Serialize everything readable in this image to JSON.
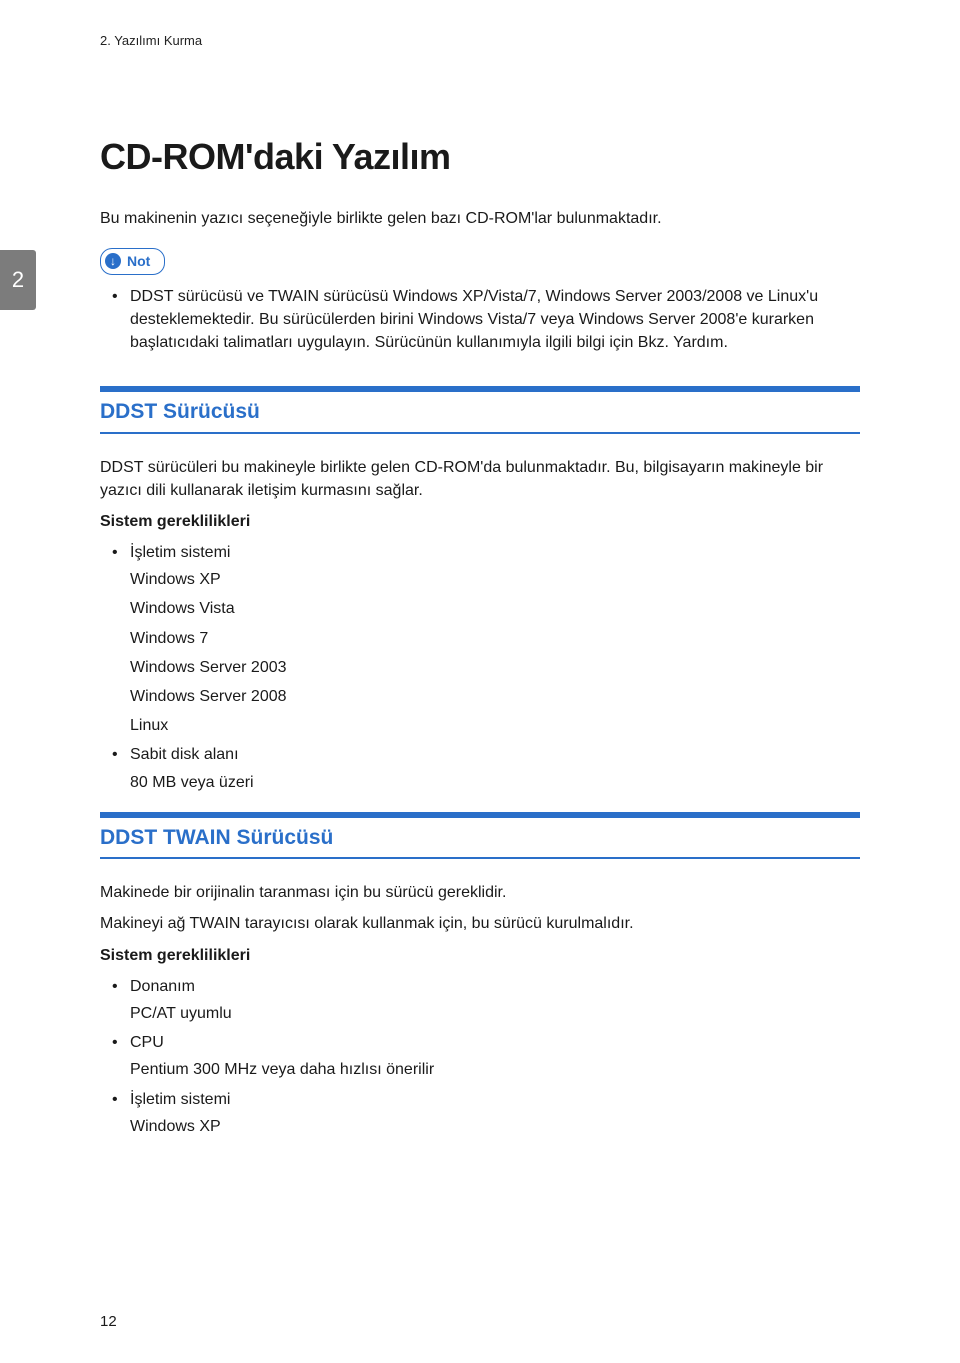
{
  "header": {
    "label": "2. Yazılımı Kurma"
  },
  "chapter_tab": "2",
  "title": "CD-ROM'daki Yazılım",
  "intro": "Bu makinenin yazıcı seçeneğiyle birlikte gelen bazı CD-ROM'lar bulunmaktadır.",
  "note": {
    "icon": "↓",
    "label": "Not",
    "items": [
      "DDST sürücüsü ve TWAIN sürücüsü Windows XP/Vista/7, Windows Server 2003/2008 ve Linux'u desteklemektedir. Bu sürücülerden birini Windows Vista/7 veya Windows Server 2008'e kurarken başlatıcıdaki talimatları uygulayın. Sürücünün kullanımıyla ilgili bilgi için Bkz. Yardım."
    ]
  },
  "section1": {
    "title": "DDST Sürücüsü",
    "p1": "DDST sürücüleri bu makineyle birlikte gelen CD-ROM'da bulunmaktadır. Bu, bilgisayarın makineyle bir yazıcı dili kullanarak iletişim kurmasını sağlar.",
    "reqs_heading": "Sistem gereklilikleri",
    "reqs": [
      {
        "label": "İşletim sistemi",
        "sub": [
          "Windows XP",
          "Windows Vista",
          "Windows 7",
          "Windows Server 2003",
          "Windows Server 2008",
          "Linux"
        ]
      },
      {
        "label": "Sabit disk alanı",
        "sub": [
          "80 MB veya üzeri"
        ]
      }
    ]
  },
  "section2": {
    "title": "DDST TWAIN Sürücüsü",
    "p1": "Makinede bir orijinalin taranması için bu sürücü gereklidir.",
    "p2": "Makineyi ağ TWAIN tarayıcısı olarak kullanmak için, bu sürücü kurulmalıdır.",
    "reqs_heading": "Sistem gereklilikleri",
    "reqs": [
      {
        "label": "Donanım",
        "sub": [
          "PC/AT uyumlu"
        ]
      },
      {
        "label": "CPU",
        "sub": [
          "Pentium 300 MHz veya daha hızlısı önerilir"
        ]
      },
      {
        "label": "İşletim sistemi",
        "sub": [
          "Windows XP"
        ]
      }
    ]
  },
  "page_number": "12",
  "colors": {
    "accent": "#2a6fc9",
    "tab_bg": "#7c7c7c",
    "text": "#1a1a1a",
    "bg": "#ffffff"
  }
}
